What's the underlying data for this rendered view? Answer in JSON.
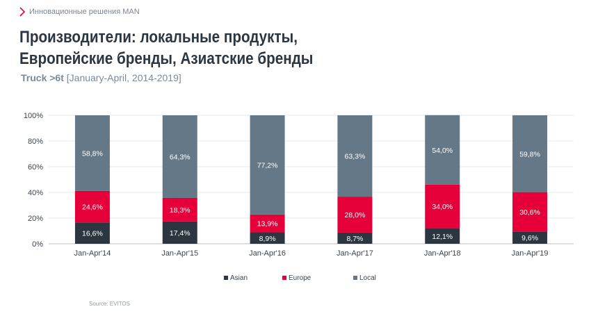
{
  "header": {
    "breadcrumb": "Инновационные решения MAN",
    "title": "Производители: локальные продукты, Европейские бренды, Азиатские бренды",
    "subtitle_bold": "Truck >6t",
    "subtitle_rest": "[January-April, 2014-2019]"
  },
  "chart_data": {
    "type": "bar",
    "stacked": true,
    "categories": [
      "Jan-Apr'14",
      "Jan-Apr'15",
      "Jan-Apr'16",
      "Jan-Apr'17",
      "Jan-Apr'18",
      "Jan-Apr'19"
    ],
    "series": [
      {
        "name": "Asian",
        "color": "#2b3640",
        "values": [
          16.6,
          17.4,
          8.9,
          8.7,
          12.1,
          9.6
        ],
        "labels": [
          "16,6%",
          "17,4%",
          "8,9%",
          "8,7%",
          "12,1%",
          "9,6%"
        ]
      },
      {
        "name": "Europe",
        "color": "#e6003a",
        "values": [
          24.6,
          18.3,
          13.9,
          28.0,
          34.0,
          30.6
        ],
        "labels": [
          "24,6%",
          "18,3%",
          "13,9%",
          "28,0%",
          "34,0%",
          "30,6%"
        ]
      },
      {
        "name": "Local",
        "color": "#647888",
        "values": [
          58.8,
          64.3,
          77.2,
          63.3,
          54.0,
          59.8
        ],
        "labels": [
          "58,8%",
          "64,3%",
          "77,2%",
          "63,3%",
          "54,0%",
          "59,8%"
        ]
      }
    ],
    "y_ticks": [
      "0%",
      "20%",
      "40%",
      "60%",
      "80%",
      "100%"
    ],
    "ylim": [
      0,
      100
    ],
    "grid": true,
    "legend_position": "bottom"
  },
  "footer": {
    "source": "Source: EVITOS"
  }
}
